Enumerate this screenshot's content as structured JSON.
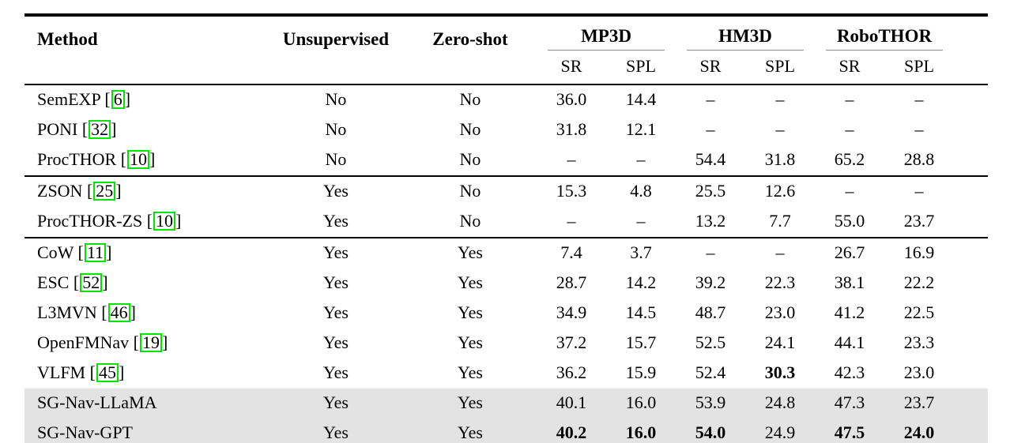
{
  "colors": {
    "citation_green": "#00e400",
    "highlight_gray": "#e3e3e3",
    "cmidrule_gray": "#8f8f8f"
  },
  "table": {
    "headers": {
      "method": "Method",
      "unsupervised": "Unsupervised",
      "zero_shot": "Zero-shot"
    },
    "groups": [
      {
        "label": "MP3D",
        "sub": [
          "SR",
          "SPL"
        ]
      },
      {
        "label": "HM3D",
        "sub": [
          "SR",
          "SPL"
        ]
      },
      {
        "label": "RoboTHOR",
        "sub": [
          "SR",
          "SPL"
        ]
      }
    ],
    "blocks": [
      {
        "rows": [
          {
            "method": "SemEXP",
            "cite": "6",
            "unsupervised": "No",
            "zero_shot": "No",
            "values": [
              "36.0",
              "14.4",
              "–",
              "–",
              "–",
              "–"
            ],
            "bold": [],
            "highlight": false
          },
          {
            "method": "PONI",
            "cite": "32",
            "unsupervised": "No",
            "zero_shot": "No",
            "values": [
              "31.8",
              "12.1",
              "–",
              "–",
              "–",
              "–"
            ],
            "bold": [],
            "highlight": false
          },
          {
            "method": "ProcTHOR",
            "cite": "10",
            "unsupervised": "No",
            "zero_shot": "No",
            "values": [
              "–",
              "–",
              "54.4",
              "31.8",
              "65.2",
              "28.8"
            ],
            "bold": [],
            "highlight": false
          }
        ]
      },
      {
        "rows": [
          {
            "method": "ZSON",
            "cite": "25",
            "unsupervised": "Yes",
            "zero_shot": "No",
            "values": [
              "15.3",
              "4.8",
              "25.5",
              "12.6",
              "–",
              "–"
            ],
            "bold": [],
            "highlight": false
          },
          {
            "method": "ProcTHOR-ZS",
            "cite": "10",
            "unsupervised": "Yes",
            "zero_shot": "No",
            "values": [
              "–",
              "–",
              "13.2",
              "7.7",
              "55.0",
              "23.7"
            ],
            "bold": [],
            "highlight": false
          }
        ]
      },
      {
        "rows": [
          {
            "method": "CoW",
            "cite": "11",
            "unsupervised": "Yes",
            "zero_shot": "Yes",
            "values": [
              "7.4",
              "3.7",
              "–",
              "–",
              "26.7",
              "16.9"
            ],
            "bold": [],
            "highlight": false
          },
          {
            "method": "ESC",
            "cite": "52",
            "unsupervised": "Yes",
            "zero_shot": "Yes",
            "values": [
              "28.7",
              "14.2",
              "39.2",
              "22.3",
              "38.1",
              "22.2"
            ],
            "bold": [],
            "highlight": false
          },
          {
            "method": "L3MVN",
            "cite": "46",
            "unsupervised": "Yes",
            "zero_shot": "Yes",
            "values": [
              "34.9",
              "14.5",
              "48.7",
              "23.0",
              "41.2",
              "22.5"
            ],
            "bold": [],
            "highlight": false
          },
          {
            "method": "OpenFMNav",
            "cite": "19",
            "unsupervised": "Yes",
            "zero_shot": "Yes",
            "values": [
              "37.2",
              "15.7",
              "52.5",
              "24.1",
              "44.1",
              "23.3"
            ],
            "bold": [],
            "highlight": false
          },
          {
            "method": "VLFM",
            "cite": "45",
            "unsupervised": "Yes",
            "zero_shot": "Yes",
            "values": [
              "36.2",
              "15.9",
              "52.4",
              "30.3",
              "42.3",
              "23.0"
            ],
            "bold": [
              3
            ],
            "highlight": false
          },
          {
            "method": "SG-Nav-LLaMA",
            "cite": null,
            "unsupervised": "Yes",
            "zero_shot": "Yes",
            "values": [
              "40.1",
              "16.0",
              "53.9",
              "24.8",
              "47.3",
              "23.7"
            ],
            "bold": [],
            "highlight": true
          },
          {
            "method": "SG-Nav-GPT",
            "cite": null,
            "unsupervised": "Yes",
            "zero_shot": "Yes",
            "values": [
              "40.2",
              "16.0",
              "54.0",
              "24.9",
              "47.5",
              "24.0"
            ],
            "bold": [
              0,
              1,
              2,
              4,
              5
            ],
            "highlight": true
          }
        ]
      }
    ]
  }
}
